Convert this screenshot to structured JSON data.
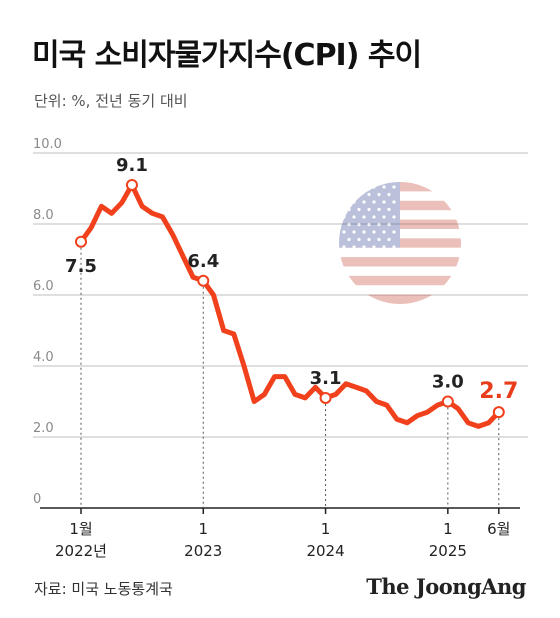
{
  "title": "미국 소비자물가지수(CPI) 추이",
  "subtitle": "단위: %, 전년 동기 대비",
  "source": "자료: 미국 노동통계국",
  "brand": "The JoongAng",
  "colors": {
    "line": "#f0401c",
    "highlight": "#e83c1a",
    "grid": "#bfbfbf",
    "text": "#222222"
  },
  "chart_data": {
    "type": "line",
    "title": "미국 소비자물가지수(CPI) 추이",
    "ylabel": "단위: %, 전년 동기 대비",
    "ylim": [
      0,
      10
    ],
    "yticks": [
      "0",
      "2.0",
      "4.0",
      "6.0",
      "8.0",
      "10.0"
    ],
    "grid": true,
    "x_tick_labels": [
      {
        "label": "1월",
        "sub": "2022년",
        "month_index": 0
      },
      {
        "label": "1",
        "sub": "2023",
        "month_index": 12
      },
      {
        "label": "1",
        "sub": "2024",
        "month_index": 24
      },
      {
        "label": "1",
        "sub": "2025",
        "month_index": 36
      },
      {
        "label": "6월",
        "sub": "",
        "month_index": 41
      }
    ],
    "series": [
      {
        "values": [
          7.5,
          7.9,
          8.5,
          8.3,
          8.6,
          9.1,
          8.5,
          8.3,
          8.2,
          7.7,
          7.1,
          6.5,
          6.4,
          6.0,
          5.0,
          4.9,
          4.0,
          3.0,
          3.2,
          3.7,
          3.7,
          3.2,
          3.1,
          3.4,
          3.1,
          3.2,
          3.5,
          3.4,
          3.3,
          3.0,
          2.9,
          2.5,
          2.4,
          2.6,
          2.7,
          2.9,
          3.0,
          2.8,
          2.4,
          2.3,
          2.4,
          2.7
        ]
      }
    ],
    "annotations": [
      {
        "month_index": 0,
        "label": "7.5",
        "highlight": false
      },
      {
        "month_index": 5,
        "label": "9.1",
        "highlight": false
      },
      {
        "month_index": 12,
        "label": "6.4",
        "highlight": false
      },
      {
        "month_index": 24,
        "label": "3.1",
        "highlight": false
      },
      {
        "month_index": 36,
        "label": "3.0",
        "highlight": false
      },
      {
        "month_index": 41,
        "label": "2.7",
        "highlight": true
      }
    ]
  },
  "decoration": {
    "flag_icon": "us-flag-icon"
  }
}
